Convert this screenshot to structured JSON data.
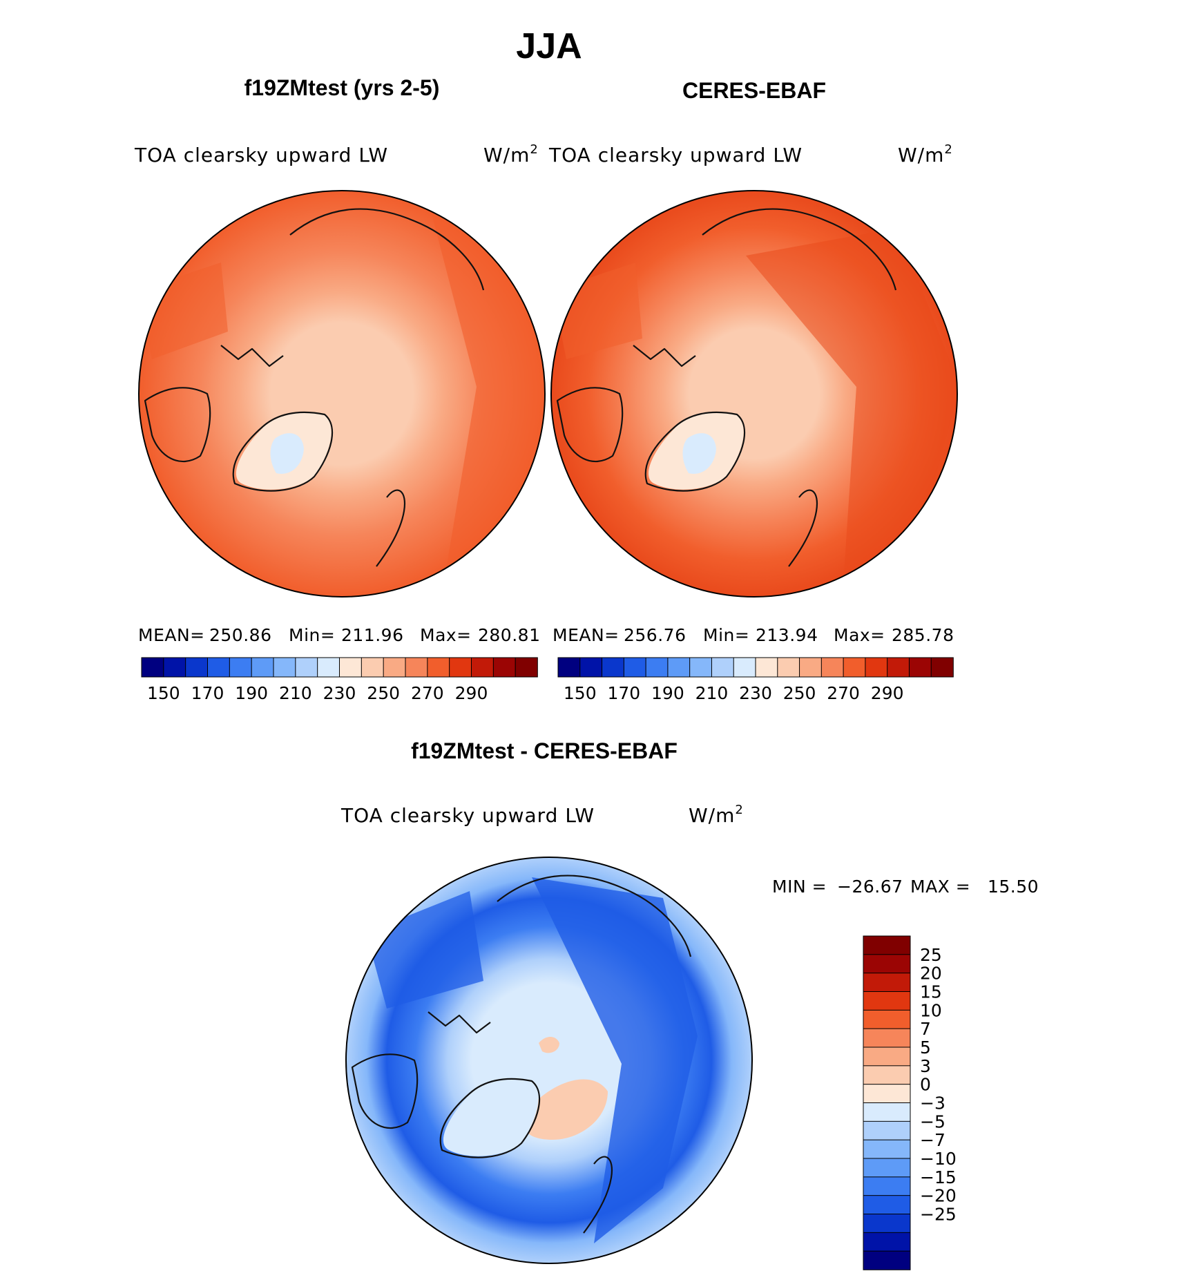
{
  "figure": {
    "title": "JJA"
  },
  "colors": {
    "diverging": [
      "#000080",
      "#0013a8",
      "#0a37cc",
      "#1f5ce6",
      "#3c7df2",
      "#5e9bf7",
      "#85b7fa",
      "#afd0fb",
      "#d9ebfd",
      "#fde7d6",
      "#fbccb0",
      "#f9aa84",
      "#f6855a",
      "#f15e2c",
      "#e13710",
      "#c21a08",
      "#9b0504",
      "#800000"
    ]
  },
  "chart_data": [
    {
      "type": "heatmap",
      "panel": "model",
      "title": "f19ZMtest (yrs 2-5)",
      "variable": "TOA clearsky upward LW",
      "units": "W/m",
      "units_exponent": "2",
      "projection": "north polar stereographic",
      "stats": {
        "mean_label": "MEAN=",
        "mean": "250.86",
        "min_label": "Min=",
        "min": "211.96",
        "max_label": "Max=",
        "max": "280.81"
      },
      "colorbar": {
        "levels": [
          150,
          160,
          170,
          180,
          190,
          200,
          210,
          220,
          230,
          240,
          250,
          260,
          270,
          280,
          290
        ],
        "tick_labels": [
          "150",
          "170",
          "190",
          "210",
          "230",
          "250",
          "270",
          "290"
        ]
      }
    },
    {
      "type": "heatmap",
      "panel": "obs",
      "title": "CERES-EBAF",
      "variable": "TOA clearsky upward LW",
      "units": "W/m",
      "units_exponent": "2",
      "projection": "north polar stereographic",
      "stats": {
        "mean_label": "MEAN=",
        "mean": "256.76",
        "min_label": "Min=",
        "min": "213.94",
        "max_label": "Max=",
        "max": "285.78"
      },
      "colorbar": {
        "levels": [
          150,
          160,
          170,
          180,
          190,
          200,
          210,
          220,
          230,
          240,
          250,
          260,
          270,
          280,
          290
        ],
        "tick_labels": [
          "150",
          "170",
          "190",
          "210",
          "230",
          "250",
          "270",
          "290"
        ]
      }
    },
    {
      "type": "heatmap",
      "panel": "diff",
      "title": "f19ZMtest - CERES-EBAF",
      "variable": "TOA clearsky upward LW",
      "units": "W/m",
      "units_exponent": "2",
      "projection": "north polar stereographic",
      "stats": {
        "min_label": "MIN =",
        "min": "−26.67",
        "max_label": "MAX =",
        "max": "15.50"
      },
      "colorbar": {
        "levels": [
          -25,
          -20,
          -15,
          -10,
          -7,
          -5,
          -3,
          0,
          3,
          5,
          7,
          10,
          15,
          20,
          25
        ],
        "tick_labels": [
          "25",
          "20",
          "15",
          "10",
          "7",
          "5",
          "3",
          "0",
          "−3",
          "−5",
          "−7",
          "−10",
          "−15",
          "−20",
          "−25"
        ]
      }
    }
  ]
}
